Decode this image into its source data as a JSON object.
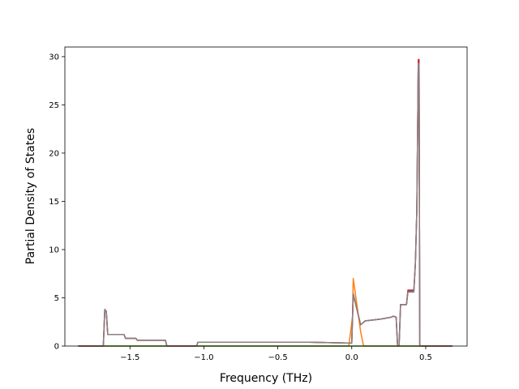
{
  "chart_data": {
    "type": "line",
    "title": "",
    "xlabel": "Frequency (THz)",
    "ylabel": "Partial Density of States",
    "xlim": [
      -1.94,
      0.78
    ],
    "ylim": [
      0,
      31
    ],
    "xticks": [
      -1.5,
      -1.0,
      -0.5,
      0.0,
      0.5
    ],
    "xtick_labels": [
      "−1.5",
      "−1.0",
      "−0.5",
      "0.0",
      "0.5"
    ],
    "yticks": [
      0,
      5,
      10,
      15,
      20,
      25,
      30
    ],
    "ytick_labels": [
      "0",
      "5",
      "10",
      "15",
      "20",
      "25",
      "30"
    ],
    "grid": false,
    "legend": "none",
    "series": [
      {
        "color": "#1f77b4",
        "x": [
          -1.85,
          -1.68,
          -1.67,
          -1.66,
          -1.65,
          -1.63,
          -1.54,
          -1.53,
          -1.46,
          -1.45,
          -1.3,
          -1.26,
          -1.25,
          -1.05,
          -1.04,
          -0.3,
          0.0,
          0.01,
          0.06,
          0.09,
          0.2,
          0.27,
          0.28,
          0.3,
          0.31,
          0.32,
          0.33,
          0.37,
          0.38,
          0.42,
          0.43,
          0.44,
          0.45,
          0.455,
          0.46,
          0.47,
          0.68
        ],
        "y": [
          0,
          0,
          3.8,
          3.6,
          1.2,
          1.2,
          1.2,
          0.8,
          0.8,
          0.6,
          0.6,
          0.6,
          0,
          0,
          0.4,
          0.4,
          0.3,
          5.4,
          2.2,
          2.6,
          2.8,
          3.0,
          3.1,
          3.0,
          0,
          0,
          4.3,
          4.3,
          5.7,
          5.7,
          8.5,
          14.0,
          29.5,
          29.5,
          0,
          0,
          0
        ]
      },
      {
        "color": "#ff7f0e",
        "x": [
          -1.85,
          -0.02,
          0.005,
          0.01,
          0.06,
          0.08,
          0.68
        ],
        "y": [
          0,
          0,
          3.0,
          7.0,
          1.5,
          0,
          0
        ]
      },
      {
        "color": "#2ca02c",
        "x": [
          -1.85,
          0.68
        ],
        "y": [
          0,
          0
        ]
      },
      {
        "color": "#d62728",
        "x": [
          -1.85,
          -1.68,
          -1.67,
          -1.66,
          -1.65,
          -1.63,
          -1.54,
          -1.53,
          -1.46,
          -1.45,
          -1.3,
          -1.26,
          -1.25,
          -1.05,
          -1.04,
          -0.3,
          0.0,
          0.01,
          0.06,
          0.09,
          0.2,
          0.27,
          0.28,
          0.3,
          0.31,
          0.32,
          0.33,
          0.37,
          0.38,
          0.42,
          0.43,
          0.44,
          0.45,
          0.455,
          0.46,
          0.47,
          0.68
        ],
        "y": [
          0,
          0,
          3.8,
          3.6,
          1.2,
          1.2,
          1.2,
          0.8,
          0.8,
          0.6,
          0.6,
          0.6,
          0,
          0,
          0.4,
          0.4,
          0.3,
          5.4,
          2.2,
          2.6,
          2.8,
          3.0,
          3.1,
          3.0,
          0,
          0,
          4.3,
          4.3,
          5.8,
          5.8,
          8.5,
          14.0,
          29.7,
          29.7,
          0,
          0,
          0
        ]
      },
      {
        "color": "#8c7f80",
        "x": [
          -1.85,
          -1.68,
          -1.67,
          -1.66,
          -1.65,
          -1.63,
          -1.54,
          -1.53,
          -1.46,
          -1.45,
          -1.3,
          -1.26,
          -1.25,
          -1.05,
          -1.04,
          -0.3,
          0.0,
          0.01,
          0.06,
          0.09,
          0.2,
          0.27,
          0.28,
          0.3,
          0.31,
          0.32,
          0.33,
          0.37,
          0.38,
          0.42,
          0.43,
          0.44,
          0.45,
          0.455,
          0.46,
          0.47,
          0.68
        ],
        "y": [
          0,
          0,
          3.8,
          3.6,
          1.2,
          1.2,
          1.2,
          0.8,
          0.8,
          0.6,
          0.6,
          0.6,
          0,
          0,
          0.4,
          0.4,
          0.3,
          5.4,
          2.2,
          2.6,
          2.8,
          3.0,
          3.1,
          3.0,
          0,
          0,
          4.3,
          4.3,
          5.6,
          5.6,
          8.5,
          14.0,
          29.3,
          29.3,
          0,
          0,
          0
        ]
      }
    ]
  }
}
